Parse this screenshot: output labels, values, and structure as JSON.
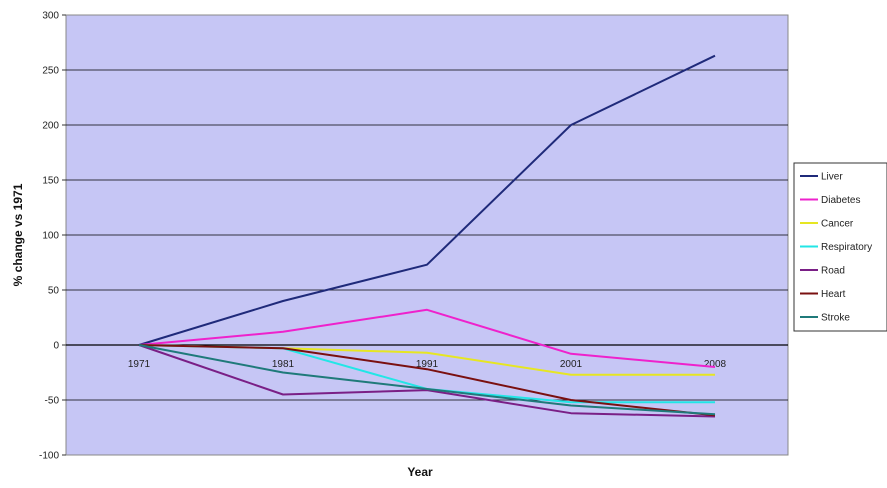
{
  "chart_data": {
    "type": "line",
    "title": "",
    "xlabel": "Year",
    "ylabel": "% change vs 1971",
    "categories": [
      "1971",
      "1981",
      "1991",
      "2001",
      "2008"
    ],
    "ylim": [
      -100,
      300
    ],
    "yticks": [
      "300",
      "250",
      "200",
      "150",
      "100",
      "50",
      "0",
      "-50",
      "-100"
    ],
    "grid": true,
    "legend_position": "right",
    "plot_background": "#c6c6f5",
    "series": [
      {
        "name": "Liver",
        "color": "#1f2a7a",
        "values": [
          0,
          40,
          73,
          200,
          263
        ]
      },
      {
        "name": "Diabetes",
        "color": "#ee22cc",
        "values": [
          0,
          12,
          32,
          -8,
          -20
        ]
      },
      {
        "name": "Cancer",
        "color": "#e6e622",
        "values": [
          0,
          -3,
          -7,
          -27,
          -27
        ]
      },
      {
        "name": "Respiratory",
        "color": "#22e6e6",
        "values": [
          0,
          -3,
          -40,
          -52,
          -52
        ]
      },
      {
        "name": "Road",
        "color": "#7a1f86",
        "values": [
          0,
          -45,
          -41,
          -62,
          -65
        ]
      },
      {
        "name": "Heart",
        "color": "#7a1010",
        "values": [
          0,
          -3,
          -22,
          -50,
          -64
        ]
      },
      {
        "name": "Stroke",
        "color": "#1f7a7a",
        "values": [
          0,
          -25,
          -40,
          -55,
          -63
        ]
      }
    ]
  }
}
